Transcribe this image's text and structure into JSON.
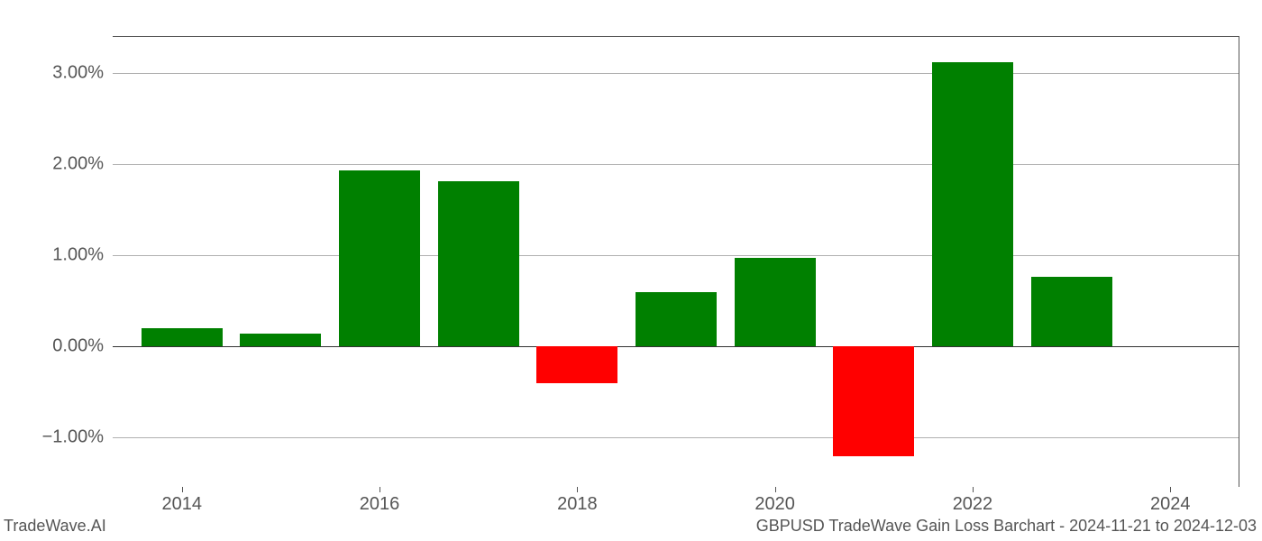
{
  "chart": {
    "type": "bar",
    "years": [
      2014,
      2015,
      2016,
      2017,
      2018,
      2019,
      2020,
      2021,
      2022,
      2023
    ],
    "values": [
      0.2,
      0.14,
      1.93,
      1.82,
      -0.4,
      0.6,
      0.97,
      -1.2,
      3.12,
      0.77
    ],
    "positive_color": "#008000",
    "negative_color": "#ff0000",
    "background_color": "#ffffff",
    "grid_color": "#b0b0b0",
    "axis_color": "#555555",
    "text_color": "#555555",
    "ylim": [
      -1.55,
      3.4
    ],
    "y_ticks": [
      -1.0,
      0.0,
      1.0,
      2.0,
      3.0
    ],
    "y_tick_labels": [
      "−1.00%",
      "0.00%",
      "1.00%",
      "2.00%",
      "3.00%"
    ],
    "x_ticks": [
      2014,
      2016,
      2018,
      2020,
      2022,
      2024
    ],
    "x_tick_labels": [
      "2014",
      "2016",
      "2018",
      "2020",
      "2022",
      "2024"
    ],
    "xlim": [
      2013.3,
      2024.7
    ],
    "bar_width_years": 0.82,
    "tick_fontsize": 20,
    "footer_fontsize": 18
  },
  "footer": {
    "left": "TradeWave.AI",
    "right": "GBPUSD TradeWave Gain Loss Barchart - 2024-11-21 to 2024-12-03"
  }
}
